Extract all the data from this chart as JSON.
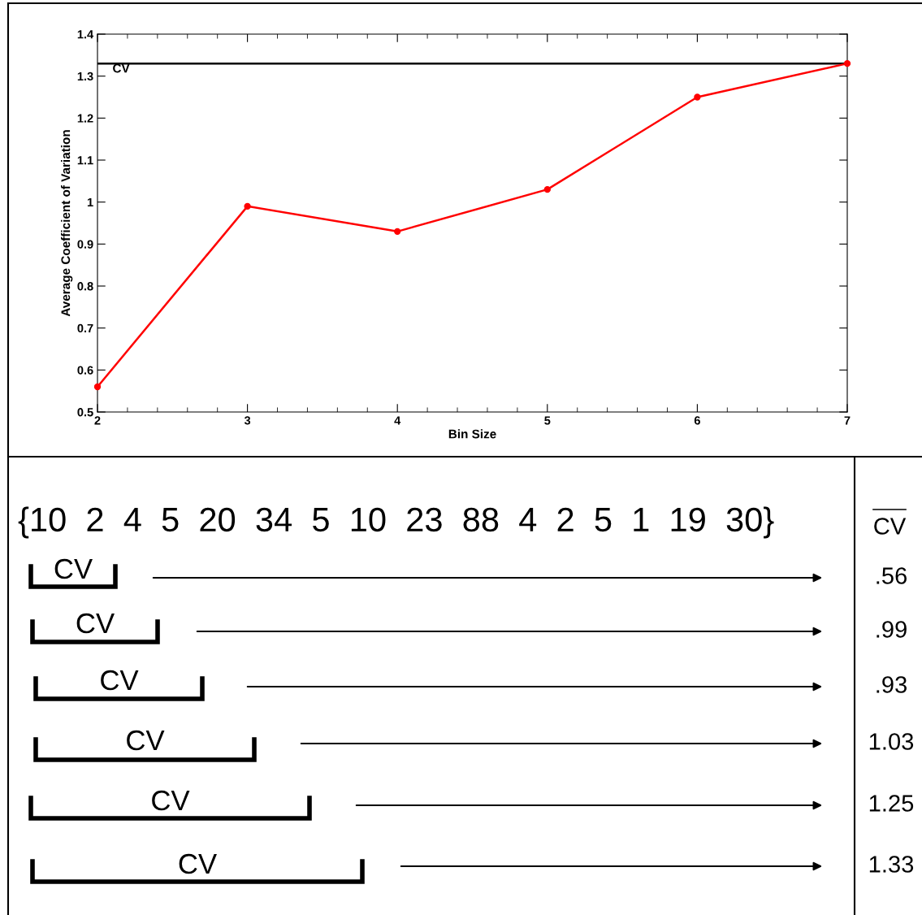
{
  "chart_data": [
    {
      "type": "line",
      "xlabel": "Bin Size",
      "ylabel": "Average Coefficient of Variation",
      "x": [
        2,
        3,
        4,
        5,
        6,
        7
      ],
      "series": [
        {
          "color": "#ff0000",
          "values": [
            0.56,
            0.99,
            0.93,
            1.03,
            1.25,
            1.33
          ]
        }
      ],
      "xlim": [
        2,
        7
      ],
      "xticks": [
        2,
        3,
        4,
        5,
        6,
        7
      ],
      "ylim": [
        0.5,
        1.4
      ],
      "yticks": [
        0.5,
        0.6,
        0.7,
        0.8,
        0.9,
        1,
        1.1,
        1.2,
        1.3,
        1.4
      ],
      "ref_lines": [
        {
          "axis": "y",
          "value": 1.33,
          "label": "CV",
          "color": "#000000"
        }
      ],
      "marker": "circle",
      "line_style": "solid",
      "grid": false,
      "legend": false
    },
    {
      "type": "other",
      "annotations": [
        "{10  2  4  5  20  34  5  10  23  88  4  2  5  1  19  30}",
        "CV",
        "CV",
        "CV",
        "CV",
        "CV",
        "CV",
        "CV",
        ".56",
        ".99",
        ".93",
        "1.03",
        "1.25",
        "1.33"
      ]
    }
  ]
}
